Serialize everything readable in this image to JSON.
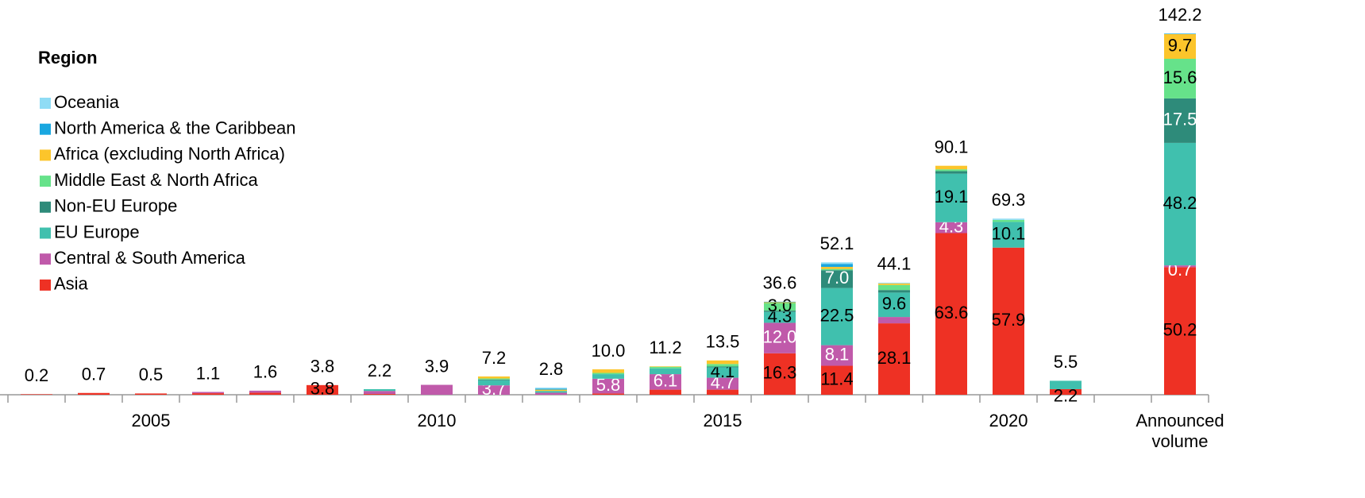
{
  "chart_data": {
    "type": "stacked_bar",
    "legend_title": "Region",
    "legend": "upper left",
    "categories": [
      null,
      null,
      "2005",
      null,
      null,
      null,
      null,
      "2010",
      null,
      null,
      null,
      null,
      "2015",
      null,
      null,
      null,
      null,
      "2020",
      null,
      null,
      "Announced volume"
    ],
    "totals": [
      0.2,
      0.7,
      0.5,
      1.1,
      1.6,
      3.8,
      2.2,
      3.9,
      7.2,
      2.8,
      10.0,
      11.2,
      13.5,
      36.6,
      52.1,
      44.1,
      90.1,
      69.3,
      5.5,
      null,
      142.2
    ],
    "total_labels": [
      "0.2",
      "0.7",
      "0.5",
      "1.1",
      "1.6",
      "3.8",
      "2.2",
      "3.9",
      "7.2",
      "2.8",
      "10.0",
      "11.2",
      "13.5",
      "36.6",
      "52.1",
      "44.1",
      "90.1",
      "69.3",
      "5.5",
      null,
      "142.2"
    ],
    "series": [
      {
        "name": "Asia",
        "color": "#ee3124",
        "label_color": "#000000",
        "values": [
          0.2,
          0.7,
          0.5,
          0.6,
          0.8,
          3.8,
          0.3,
          0,
          0,
          0,
          0.5,
          2.0,
          2.0,
          16.3,
          11.4,
          28.1,
          63.6,
          57.9,
          2.2,
          null,
          50.2
        ],
        "value_labels": [
          null,
          null,
          null,
          null,
          null,
          "3.8",
          null,
          null,
          null,
          null,
          null,
          null,
          null,
          "16.3",
          "11.4",
          "28.1",
          "63.6",
          "57.9",
          "2.2",
          null,
          "50.2"
        ]
      },
      {
        "name": "Central & South America",
        "color": "#c05aaa",
        "label_color": "#ffffff",
        "values": [
          0,
          0,
          0,
          0.5,
          0.8,
          0,
          1.2,
          3.9,
          3.7,
          0.8,
          5.8,
          6.1,
          4.7,
          12.0,
          8.1,
          2.5,
          4.3,
          0,
          0,
          null,
          0.7
        ],
        "value_labels": [
          null,
          null,
          null,
          null,
          null,
          null,
          null,
          null,
          "3.7",
          null,
          "5.8",
          "6.1",
          "4.7",
          "12.0",
          "8.1",
          null,
          "4.3",
          null,
          null,
          null,
          "0.7"
        ]
      },
      {
        "name": "EU Europe",
        "color": "#40c0ae",
        "label_color": "#000000",
        "values": [
          0,
          0,
          0,
          0,
          0,
          0,
          0.7,
          0,
          2.0,
          0.7,
          1.8,
          2.3,
          4.1,
          4.3,
          22.5,
          9.6,
          19.1,
          10.1,
          3.3,
          null,
          48.2
        ],
        "value_labels": [
          null,
          null,
          null,
          null,
          null,
          null,
          null,
          null,
          null,
          null,
          null,
          null,
          "4.1",
          "4.3",
          "22.5",
          "9.6",
          "19.1",
          "10.1",
          null,
          null,
          "48.2"
        ]
      },
      {
        "name": "Non-EU Europe",
        "color": "#2e8b7a",
        "label_color": "#ffffff",
        "values": [
          0,
          0,
          0,
          0,
          0,
          0,
          0,
          0,
          0.3,
          0,
          0,
          0,
          0.3,
          0.5,
          7.0,
          1.0,
          1.0,
          0,
          0,
          null,
          17.5
        ],
        "value_labels": [
          null,
          null,
          null,
          null,
          null,
          null,
          null,
          null,
          null,
          null,
          null,
          null,
          null,
          null,
          "7.0",
          null,
          null,
          null,
          null,
          null,
          "17.5"
        ]
      },
      {
        "name": "Middle East & North Africa",
        "color": "#66e28a",
        "label_color": "#000000",
        "values": [
          0,
          0,
          0,
          0,
          0,
          0,
          0,
          0,
          0.4,
          0,
          0.5,
          0.6,
          1.0,
          3.0,
          0.5,
          2.0,
          0.7,
          0.8,
          0,
          null,
          15.6
        ],
        "value_labels": [
          null,
          null,
          null,
          null,
          null,
          null,
          null,
          null,
          null,
          null,
          null,
          null,
          null,
          "3.0",
          null,
          null,
          null,
          null,
          null,
          null,
          "15.6"
        ]
      },
      {
        "name": "Africa (excluding North Africa)",
        "color": "#fcc52b",
        "label_color": "#000000",
        "values": [
          0,
          0,
          0,
          0,
          0,
          0,
          0,
          0,
          0.8,
          0.5,
          1.4,
          0.2,
          1.4,
          0.3,
          0.8,
          0.6,
          1.4,
          0,
          0,
          null,
          9.7
        ],
        "value_labels": [
          null,
          null,
          null,
          null,
          null,
          null,
          null,
          null,
          null,
          null,
          null,
          null,
          null,
          null,
          null,
          null,
          null,
          null,
          null,
          null,
          "9.7"
        ]
      },
      {
        "name": "North America & the Caribbean",
        "color": "#1aa7e0",
        "label_color": "#000000",
        "values": [
          0,
          0,
          0,
          0,
          0,
          0,
          0,
          0,
          0,
          0.4,
          0,
          0,
          0,
          0.2,
          1.2,
          0,
          0,
          0,
          0,
          null,
          0.2
        ],
        "value_labels": [
          null,
          null,
          null,
          null,
          null,
          null,
          null,
          null,
          null,
          null,
          null,
          null,
          null,
          null,
          null,
          null,
          null,
          null,
          null,
          null,
          null
        ]
      },
      {
        "name": "Oceania",
        "color": "#8fdcf5",
        "label_color": "#000000",
        "values": [
          0,
          0,
          0,
          0,
          0,
          0,
          0,
          0,
          0,
          0.4,
          0,
          0,
          0,
          0,
          0.6,
          0.3,
          0,
          0.5,
          0,
          null,
          0.1
        ],
        "value_labels": [
          null,
          null,
          null,
          null,
          null,
          null,
          null,
          null,
          null,
          null,
          null,
          null,
          null,
          null,
          null,
          null,
          null,
          null,
          null,
          null,
          null
        ]
      }
    ]
  }
}
